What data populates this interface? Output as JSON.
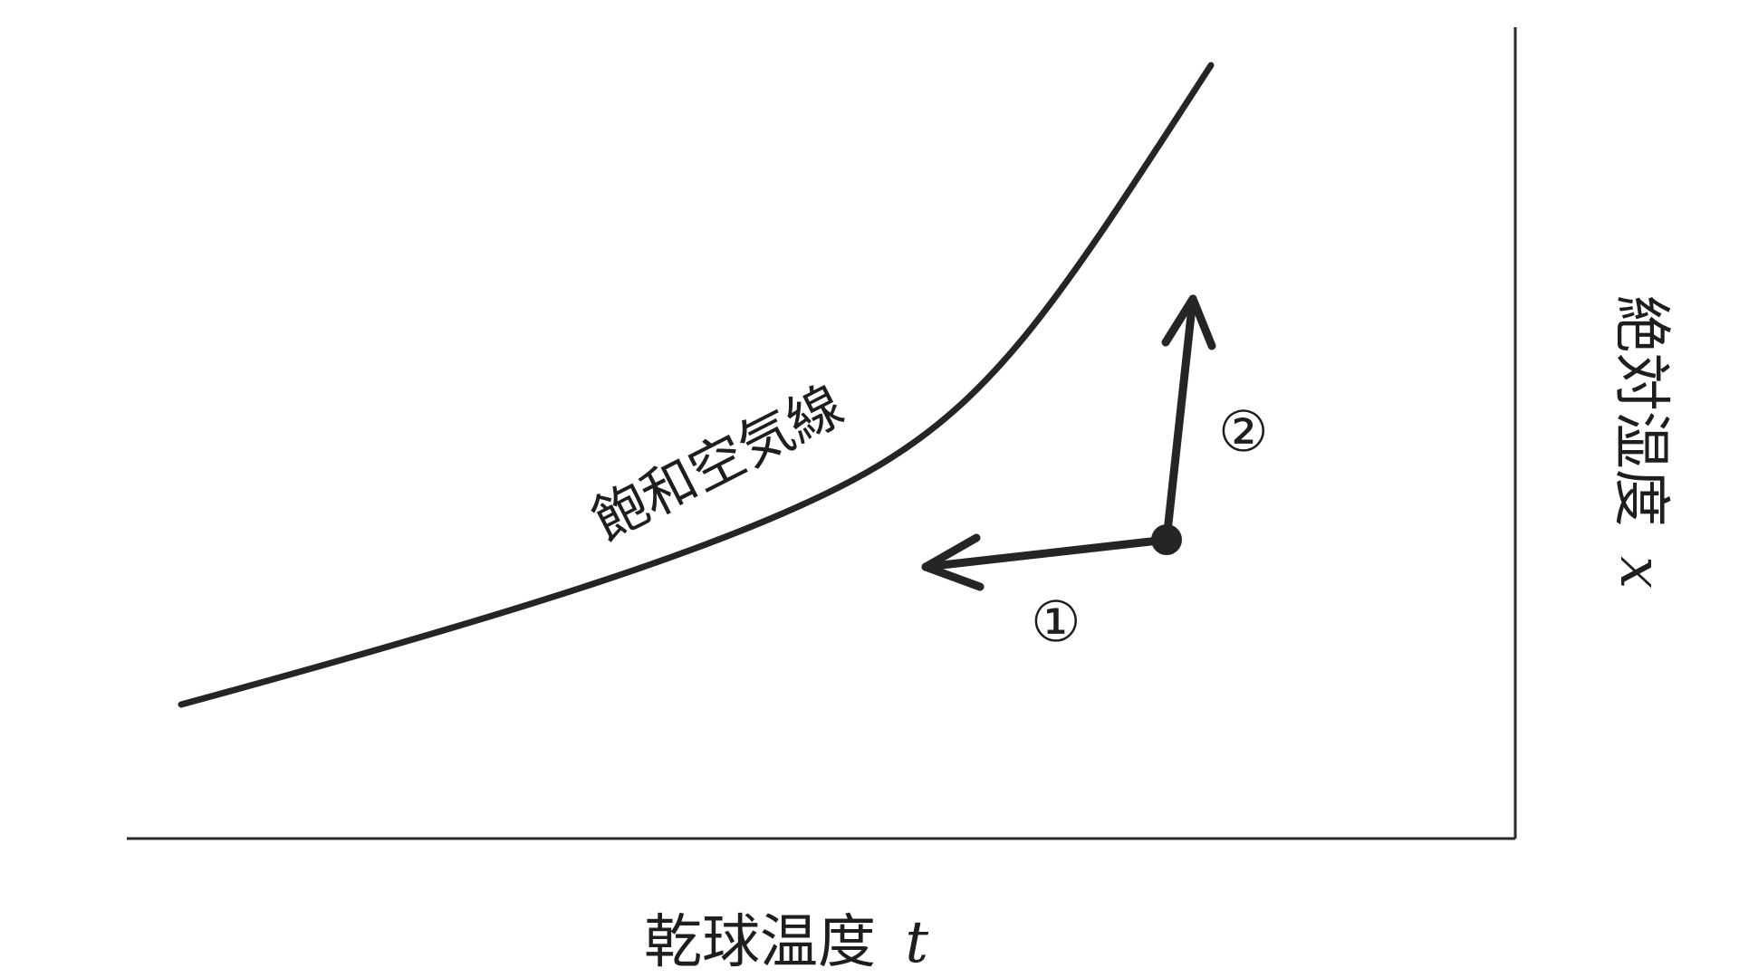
{
  "diagram": {
    "curve_label": "飽和空気線",
    "x_axis_label": "乾球温度",
    "x_axis_symbol": "t",
    "y_axis_label": "絶対湿度",
    "y_axis_symbol": "x",
    "arrow_1_label": "①",
    "arrow_2_label": "②",
    "colors": {
      "ink": "#252525",
      "background": "#ffffff"
    }
  }
}
